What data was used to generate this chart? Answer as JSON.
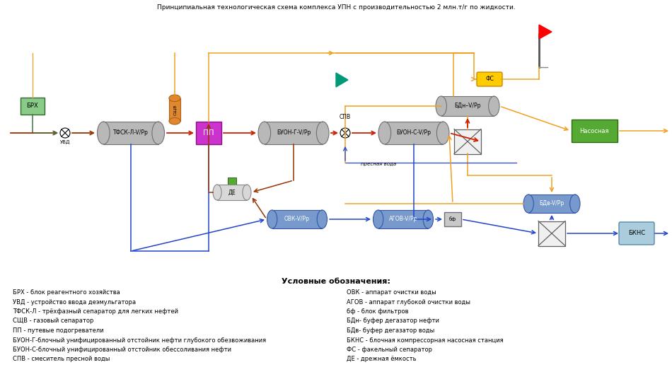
{
  "title": "Принципиальная технологическая схема комплекса УПН с производительностью 2 млн.т/г по жидкости.",
  "title_fontsize": 6.5,
  "legend_title": "Условные обозначения:",
  "legend_left": [
    "БРХ - блок реагентного хозяйства",
    "УВД - устройство ввода деэмульгатора",
    "ТФСК-Л - трёхфазный сепаратор для легких нефтей",
    "СЩВ - газовый сепаратор",
    "ПП - путевые подогреватели",
    "БУОН-Г-блочный унифицированный отстойник нефти глубокого обезвоживания",
    "БУОН-С-блочный унифицированный отстойник обессоливания нефти",
    "СПВ - смеситель пресной воды"
  ],
  "legend_right": [
    "ОВК - аппарат очистки воды",
    "АГОВ - аппарат глубокой очистки воды",
    "бф - блок фильтров",
    "БДн- буфер дегазатор нефти",
    "БДв- буфер дегазатор воды",
    "БКНС - блочная компрессорная насосная станция",
    "ФС - факельный сепаратор",
    "ДЕ - дрежная ёмкость"
  ],
  "bg_color": "#ffffff",
  "orange": "#f0a020",
  "blue_line": "#2244cc",
  "red_line": "#cc2200",
  "brown_line": "#993300",
  "gray_cyl": "#b8b8b8",
  "gray_cyl_edge": "#707070",
  "blue_cyl": "#7799cc",
  "blue_cyl_edge": "#3355aa",
  "green_box": "#55aa33",
  "green_box_edge": "#336611",
  "magenta_box": "#cc33cc",
  "magenta_box_edge": "#881188",
  "yellow_box": "#ffcc00",
  "yellow_box_edge": "#cc8800",
  "cyan_box": "#aaccdd",
  "cyan_box_edge": "#5588aa",
  "brx_green": "#88cc88",
  "brx_green_edge": "#336633",
  "orange_cyl": "#e08830",
  "orange_cyl_edge": "#b06010"
}
